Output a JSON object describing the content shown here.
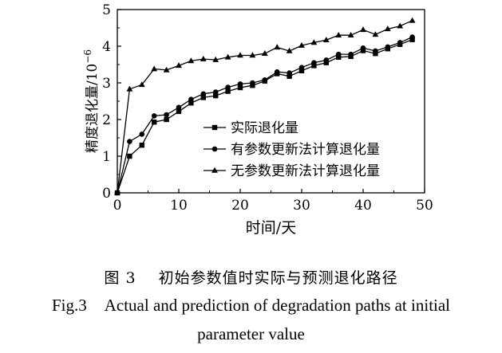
{
  "chart_data": {
    "type": "line",
    "xlabel": "时间/天",
    "ylabel": "精度退化量/10",
    "ylabel_exp": "−6",
    "xlim": [
      0,
      50
    ],
    "ylim": [
      0,
      5
    ],
    "xticks": [
      0,
      10,
      20,
      30,
      40,
      50
    ],
    "yticks": [
      0,
      1,
      2,
      3,
      4,
      5
    ],
    "grid": false,
    "legend_position": "bottom-right",
    "series": [
      {
        "name": "实际退化量",
        "marker": "square",
        "x": [
          0,
          2,
          4,
          6,
          8,
          10,
          12,
          14,
          16,
          18,
          20,
          22,
          24,
          26,
          28,
          30,
          32,
          34,
          36,
          38,
          40,
          42,
          44,
          46,
          48
        ],
        "y": [
          0,
          1.0,
          1.3,
          1.93,
          2.0,
          2.22,
          2.45,
          2.6,
          2.65,
          2.77,
          2.87,
          2.93,
          3.05,
          3.25,
          3.18,
          3.33,
          3.47,
          3.55,
          3.7,
          3.72,
          3.88,
          3.8,
          3.93,
          4.05,
          4.18
        ]
      },
      {
        "name": "有参数更新法计算退化量",
        "marker": "circle",
        "x": [
          0,
          2,
          4,
          6,
          8,
          10,
          12,
          14,
          16,
          18,
          20,
          22,
          24,
          26,
          28,
          30,
          32,
          34,
          36,
          38,
          40,
          42,
          44,
          46,
          48
        ],
        "y": [
          0,
          1.4,
          1.6,
          2.1,
          2.13,
          2.33,
          2.55,
          2.7,
          2.75,
          2.88,
          2.97,
          3.0,
          3.08,
          3.3,
          3.27,
          3.42,
          3.55,
          3.62,
          3.78,
          3.78,
          3.95,
          3.87,
          3.98,
          4.1,
          4.25
        ]
      },
      {
        "name": "无参数更新法计算退化量",
        "marker": "triangle",
        "x": [
          0,
          2,
          4,
          6,
          8,
          10,
          12,
          14,
          16,
          18,
          20,
          22,
          24,
          26,
          28,
          30,
          32,
          34,
          36,
          38,
          40,
          42,
          44,
          46,
          48
        ],
        "y": [
          0,
          2.83,
          2.95,
          3.38,
          3.35,
          3.47,
          3.6,
          3.65,
          3.63,
          3.7,
          3.75,
          3.75,
          3.8,
          3.97,
          3.87,
          4.02,
          4.1,
          4.17,
          4.3,
          4.3,
          4.45,
          4.32,
          4.47,
          4.55,
          4.7
        ]
      }
    ]
  },
  "caption": {
    "cn_label": "图 3",
    "cn_title": "初始参数值时实际与预测退化路径",
    "en_line1_label": "Fig.3",
    "en_line1": "Actual and prediction of degradation paths at initial",
    "en_line2": "parameter value"
  }
}
